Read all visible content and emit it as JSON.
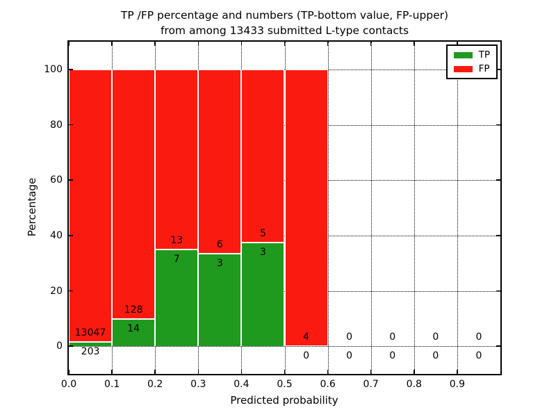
{
  "chart_data": {
    "type": "bar",
    "stacked": true,
    "title_line1": "TP /FP percentage and numbers (TP-bottom value, FP-upper)",
    "title_line2": "from among 13433 submitted L-type contacts",
    "xlabel": "Predicted probability",
    "ylabel": "Percentage",
    "xlim": [
      0,
      1
    ],
    "ylim": [
      -10,
      110
    ],
    "bin_width": 0.1,
    "grid": "dotted-both-axes",
    "legend_position": "upper right",
    "xtick_values": [
      0,
      0.1,
      0.2,
      0.3,
      0.4,
      0.5,
      0.6,
      0.7,
      0.8,
      0.9
    ],
    "xtick_labels": [
      "0.0",
      "0.1",
      "0.2",
      "0.3",
      "0.4",
      "0.5",
      "0.6",
      "0.7",
      "0.8",
      "0.9"
    ],
    "ytick_values": [
      0,
      20,
      40,
      60,
      80,
      100
    ],
    "ytick_labels": [
      "0",
      "20",
      "40",
      "60",
      "80",
      "100"
    ],
    "series": [
      {
        "name": "TP",
        "color": "#1f9a1f",
        "values": [
          203,
          14,
          7,
          3,
          3,
          0,
          0,
          0,
          0,
          0
        ]
      },
      {
        "name": "FP",
        "color": "#fb1a10",
        "values": [
          13047,
          128,
          13,
          6,
          5,
          4,
          0,
          0,
          0,
          0
        ]
      }
    ],
    "tp_percent_heights": [
      1.53,
      9.86,
      35.0,
      33.33,
      37.5,
      0.0,
      null,
      null,
      null,
      null
    ],
    "bars_drawn_for_bins": [
      "0.0-0.1",
      "0.1-0.2",
      "0.2-0.3",
      "0.3-0.4",
      "0.4-0.5",
      "0.5-0.6"
    ]
  }
}
